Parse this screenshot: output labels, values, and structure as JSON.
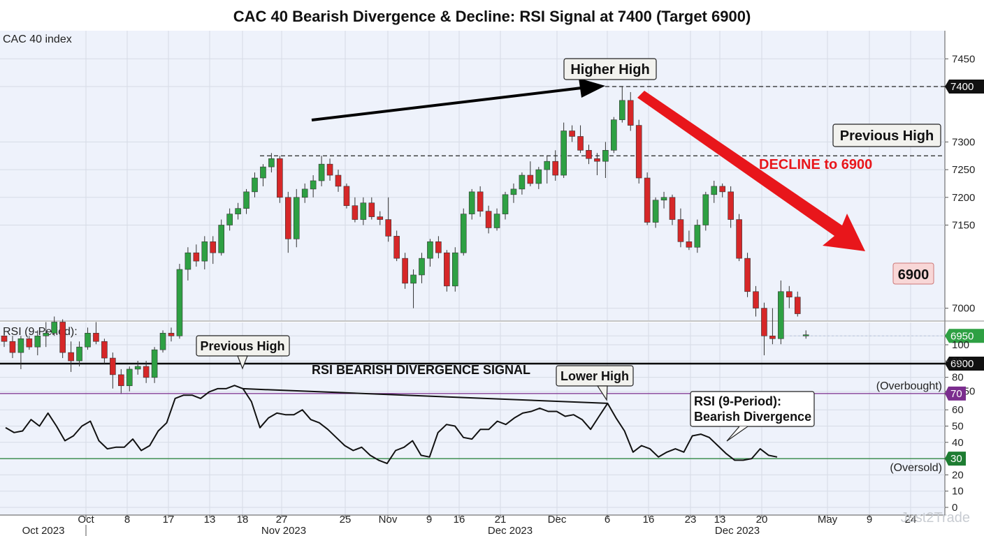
{
  "title": "CAC 40 Bearish Divergence & Decline: RSI Signal at 7400 (Target 6900)",
  "watermark": "Just2Trade",
  "colors": {
    "up": "#2ea043",
    "down": "#d62728",
    "arrow_red": "#e8161b",
    "overbought": "#7b2d8e",
    "oversold": "#1e7d32",
    "price_tag_dark": "#111111",
    "current_tag": "#2ea043",
    "target_tag_bg": "#f8d7d7"
  },
  "chart_data": [
    {
      "type": "candlestick",
      "ylabel": "CAC 40 index",
      "ylim": [
        6810,
        7500
      ],
      "yticks": [
        6850,
        6900,
        6950,
        7000,
        7150,
        7200,
        7250,
        7300,
        7400,
        7450
      ],
      "price_tags": {
        "peak": "7400",
        "current": "6950",
        "support": "6900"
      },
      "levels": {
        "support": 6900,
        "higher_high": 7400,
        "previous_high": 7275,
        "current": 6950
      },
      "candles": [
        [
          6950,
          6960,
          6930,
          6940
        ],
        [
          6940,
          6950,
          6910,
          6920
        ],
        [
          6920,
          6950,
          6890,
          6945
        ],
        [
          6945,
          6950,
          6925,
          6930
        ],
        [
          6930,
          6960,
          6915,
          6950
        ],
        [
          6950,
          6975,
          6930,
          6955
        ],
        [
          6955,
          6985,
          6950,
          6975
        ],
        [
          6975,
          6980,
          6910,
          6920
        ],
        [
          6920,
          6940,
          6885,
          6905
        ],
        [
          6905,
          6940,
          6895,
          6930
        ],
        [
          6930,
          6965,
          6925,
          6955
        ],
        [
          6955,
          6975,
          6935,
          6940
        ],
        [
          6940,
          6945,
          6900,
          6910
        ],
        [
          6910,
          6920,
          6855,
          6880
        ],
        [
          6880,
          6890,
          6845,
          6860
        ],
        [
          6860,
          6895,
          6850,
          6890
        ],
        [
          6890,
          6905,
          6880,
          6895
        ],
        [
          6895,
          6905,
          6865,
          6875
        ],
        [
          6875,
          6930,
          6865,
          6925
        ],
        [
          6925,
          6960,
          6920,
          6955
        ],
        [
          6955,
          6965,
          6940,
          6950
        ],
        [
          6950,
          7080,
          6945,
          7070
        ],
        [
          7070,
          7110,
          7050,
          7100
        ],
        [
          7100,
          7115,
          7075,
          7085
        ],
        [
          7085,
          7130,
          7070,
          7120
        ],
        [
          7120,
          7130,
          7080,
          7100
        ],
        [
          7100,
          7160,
          7095,
          7150
        ],
        [
          7150,
          7180,
          7140,
          7170
        ],
        [
          7170,
          7190,
          7160,
          7180
        ],
        [
          7180,
          7215,
          7170,
          7210
        ],
        [
          7210,
          7245,
          7200,
          7235
        ],
        [
          7235,
          7260,
          7220,
          7255
        ],
        [
          7255,
          7280,
          7245,
          7270
        ],
        [
          7270,
          7275,
          7190,
          7200
        ],
        [
          7200,
          7210,
          7100,
          7125
        ],
        [
          7125,
          7215,
          7110,
          7200
        ],
        [
          7200,
          7225,
          7190,
          7215
        ],
        [
          7215,
          7240,
          7200,
          7230
        ],
        [
          7230,
          7275,
          7220,
          7260
        ],
        [
          7260,
          7270,
          7230,
          7240
        ],
        [
          7240,
          7250,
          7210,
          7220
        ],
        [
          7220,
          7225,
          7180,
          7185
        ],
        [
          7185,
          7200,
          7155,
          7160
        ],
        [
          7160,
          7200,
          7150,
          7190
        ],
        [
          7190,
          7200,
          7160,
          7165
        ],
        [
          7165,
          7175,
          7150,
          7160
        ],
        [
          7160,
          7200,
          7120,
          7130
        ],
        [
          7130,
          7140,
          7085,
          7090
        ],
        [
          7090,
          7100,
          7035,
          7045
        ],
        [
          7045,
          7070,
          7000,
          7060
        ],
        [
          7060,
          7100,
          7045,
          7090
        ],
        [
          7090,
          7125,
          7075,
          7120
        ],
        [
          7120,
          7130,
          7090,
          7100
        ],
        [
          7100,
          7105,
          7030,
          7040
        ],
        [
          7040,
          7110,
          7030,
          7100
        ],
        [
          7100,
          7180,
          7095,
          7170
        ],
        [
          7170,
          7215,
          7160,
          7210
        ],
        [
          7210,
          7220,
          7165,
          7175
        ],
        [
          7175,
          7185,
          7135,
          7145
        ],
        [
          7145,
          7180,
          7140,
          7170
        ],
        [
          7170,
          7210,
          7160,
          7205
        ],
        [
          7205,
          7225,
          7190,
          7215
        ],
        [
          7215,
          7245,
          7205,
          7240
        ],
        [
          7240,
          7265,
          7220,
          7225
        ],
        [
          7225,
          7255,
          7215,
          7250
        ],
        [
          7250,
          7275,
          7225,
          7265
        ],
        [
          7265,
          7285,
          7230,
          7240
        ],
        [
          7240,
          7335,
          7235,
          7320
        ],
        [
          7320,
          7330,
          7300,
          7310
        ],
        [
          7310,
          7330,
          7280,
          7285
        ],
        [
          7285,
          7295,
          7260,
          7270
        ],
        [
          7270,
          7280,
          7240,
          7265
        ],
        [
          7265,
          7300,
          7235,
          7285
        ],
        [
          7285,
          7345,
          7280,
          7340
        ],
        [
          7340,
          7400,
          7335,
          7375
        ],
        [
          7375,
          7390,
          7320,
          7330
        ],
        [
          7330,
          7340,
          7225,
          7235
        ],
        [
          7235,
          7245,
          7150,
          7155
        ],
        [
          7155,
          7200,
          7145,
          7195
        ],
        [
          7195,
          7210,
          7180,
          7200
        ],
        [
          7200,
          7205,
          7150,
          7160
        ],
        [
          7160,
          7180,
          7110,
          7120
        ],
        [
          7120,
          7140,
          7105,
          7110
        ],
        [
          7110,
          7160,
          7100,
          7150
        ],
        [
          7150,
          7210,
          7140,
          7205
        ],
        [
          7205,
          7230,
          7190,
          7220
        ],
        [
          7220,
          7225,
          7200,
          7210
        ],
        [
          7210,
          7220,
          7145,
          7160
        ],
        [
          7160,
          7170,
          7085,
          7090
        ],
        [
          7090,
          7100,
          7020,
          7030
        ],
        [
          7030,
          7040,
          6985,
          7000
        ],
        [
          7000,
          7010,
          6915,
          6950
        ],
        [
          6950,
          7000,
          6935,
          6945
        ],
        [
          6945,
          7050,
          6935,
          7030
        ],
        [
          7030,
          7040,
          7000,
          7020
        ],
        [
          7020,
          7030,
          6985,
          6990
        ],
        [
          6950,
          6960,
          6945,
          6952
        ]
      ]
    },
    {
      "type": "line",
      "ylabel": "RSI (9-Period):",
      "ylim": [
        0,
        100
      ],
      "yticks": [
        0,
        10,
        20,
        30,
        40,
        50,
        60,
        70,
        80,
        90,
        100
      ],
      "overbought": 70,
      "oversold": 30,
      "overbought_label": "(Overbought)",
      "oversold_label": "(Oversold)",
      "values": [
        49,
        46,
        47,
        54,
        50,
        58,
        50,
        41,
        44,
        50,
        53,
        41,
        36,
        37,
        37,
        42,
        35,
        38,
        47,
        52,
        67,
        69,
        69,
        67,
        71,
        73,
        73,
        75,
        73,
        65,
        49,
        55,
        58,
        57,
        57,
        60,
        54,
        52,
        48,
        43,
        38,
        35,
        37,
        32,
        29,
        27,
        35,
        37,
        41,
        32,
        31,
        46,
        51,
        50,
        43,
        42,
        48,
        48,
        53,
        51,
        55,
        58,
        59,
        61,
        59,
        59,
        56,
        57,
        54,
        48,
        56,
        64,
        55,
        47,
        34,
        38,
        36,
        31,
        34,
        36,
        34,
        44,
        45,
        43,
        38,
        33,
        29,
        29,
        30,
        36,
        32,
        31
      ]
    }
  ],
  "x_axis": {
    "ticks": [
      "Oct",
      "8",
      "17",
      "13",
      "18",
      "27",
      "25",
      "Nov",
      "9",
      "16",
      "21",
      "Dec",
      "6",
      "16",
      "23",
      "13",
      "20",
      "May",
      "9",
      "24"
    ],
    "months": [
      "Oct 2023",
      "Nov 2023",
      "Dec 2023",
      "Dec 2023"
    ]
  },
  "annotations": {
    "higher_high": "Higher High",
    "previous_high_price": "Previous High",
    "decline": "DECLINE to 6900",
    "target_tag": "6900",
    "previous_high_rsi": "Previous High",
    "divergence_signal": "RSI BEARISH DIVERGENCE SIGNAL",
    "lower_high": "Lower High",
    "rsi_note_line1": "RSI (9-Period):",
    "rsi_note_line2": "Bearish Divergence"
  }
}
